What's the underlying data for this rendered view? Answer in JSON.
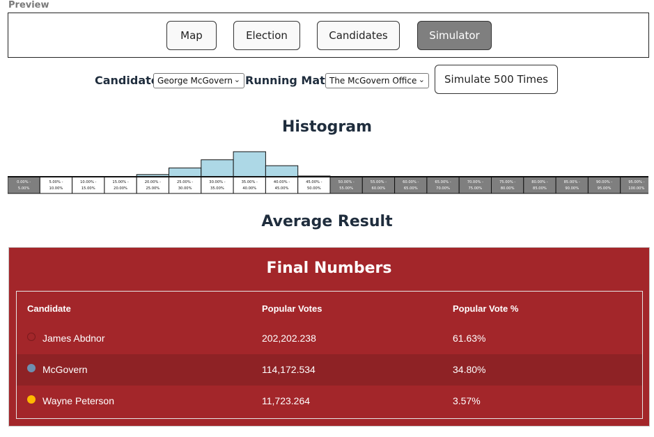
{
  "preview_label": "Preview",
  "nav": {
    "buttons": [
      "Map",
      "Election",
      "Candidates",
      "Simulator"
    ],
    "active": "Simulator"
  },
  "controls": {
    "candidate_label": "Candidate:",
    "candidate_value": "George McGovern",
    "running_mate_label": "Running Mate:",
    "running_mate_value": "The McGovern Office",
    "simulate_button": "Simulate 500 Times"
  },
  "histogram": {
    "title": "Histogram",
    "colors": {
      "bar": "#add8e6",
      "inactive_bin": "#7f7f7f",
      "active_bin": "#ffffff"
    }
  },
  "chart_data": {
    "type": "bar",
    "categories": [
      "0.00% - 5.00%",
      "5.00% - 10.00%",
      "10.00% - 15.00%",
      "15.00% - 20.00%",
      "20.00% - 25.00%",
      "25.00% - 30.00%",
      "30.00% - 35.00%",
      "35.00% - 40.00%",
      "40.00% - 45.00%",
      "45.00% - 50.00%",
      "50.00% - 55.00%",
      "55.00% - 60.00%",
      "60.00% - 65.00%",
      "65.00% - 70.00%",
      "70.00% - 75.00%",
      "75.00% - 80.00%",
      "80.00% - 85.00%",
      "85.00% - 90.00%",
      "90.00% - 95.00%",
      "95.00% - 100.00%"
    ],
    "values": [
      0,
      0,
      0,
      0,
      3,
      12,
      23,
      34,
      15,
      1,
      0,
      0,
      0,
      0,
      0,
      0,
      0,
      0,
      0,
      0
    ],
    "active_bins": [
      false,
      true,
      true,
      true,
      true,
      true,
      true,
      true,
      true,
      true,
      false,
      false,
      false,
      false,
      false,
      false,
      false,
      false,
      false,
      false
    ],
    "title": "Histogram",
    "xlabel": "",
    "ylabel": "",
    "grid": false
  },
  "average_title": "Average Result",
  "final": {
    "title": "Final Numbers",
    "headers": [
      "Candidate",
      "Popular Votes",
      "Popular Vote %"
    ],
    "rows": [
      {
        "name": "James Abdnor",
        "votes": "202,202.238",
        "pct": "61.63%",
        "color": "#a3262a"
      },
      {
        "name": "McGovern",
        "votes": "114,172.534",
        "pct": "34.80%",
        "color": "#6e8fb0"
      },
      {
        "name": "Wayne Peterson",
        "votes": "11,723.264",
        "pct": "3.57%",
        "color": "#ffb800"
      }
    ],
    "colors": {
      "panel": "#a3262a",
      "alt_row": "#8e2225"
    }
  }
}
